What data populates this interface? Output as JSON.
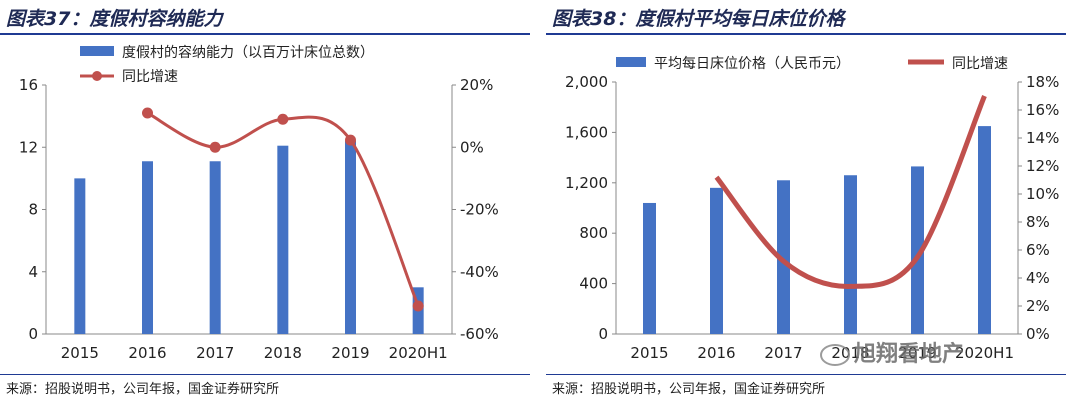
{
  "chart_data": [
    {
      "type": "bar",
      "title": "图表37：度假村容纳能力",
      "categories": [
        "2015",
        "2016",
        "2017",
        "2018",
        "2019",
        "2020H1"
      ],
      "series": [
        {
          "name": "度假村的容纳能力（以百万计床位总数）",
          "type": "bar",
          "axis": "left",
          "color": "#4472c4",
          "values": [
            10.0,
            11.1,
            11.1,
            12.1,
            12.4,
            3.0
          ]
        },
        {
          "name": "同比增速",
          "type": "line",
          "axis": "right",
          "color": "#c0504d",
          "values": [
            null,
            11.0,
            0.0,
            9.0,
            2.3,
            -51.0
          ]
        }
      ],
      "left_axis": {
        "range": [
          0,
          16
        ],
        "ticks": [
          "0",
          "4",
          "8",
          "12",
          "16"
        ]
      },
      "right_axis": {
        "range": [
          -60,
          20
        ],
        "ticks": [
          "-60%",
          "-40%",
          "-20%",
          "0%",
          "20%"
        ]
      },
      "legend_position": "top-left",
      "source": "来源：招股说明书，公司年报，国金证券研究所"
    },
    {
      "type": "bar",
      "title": "图表38：度假村平均每日床位价格",
      "categories": [
        "2015",
        "2016",
        "2017",
        "2018",
        "2019",
        "2020H1"
      ],
      "series": [
        {
          "name": "平均每日床位价格（人民币元）",
          "type": "bar",
          "axis": "left",
          "color": "#4472c4",
          "values": [
            1040,
            1160,
            1220,
            1260,
            1330,
            1650
          ]
        },
        {
          "name": "同比增速",
          "type": "line",
          "axis": "right",
          "color": "#c0504d",
          "values": [
            null,
            11.2,
            5.2,
            3.4,
            5.5,
            17.0
          ]
        }
      ],
      "left_axis": {
        "range": [
          0,
          2000
        ],
        "ticks": [
          "0",
          "400",
          "800",
          "1,200",
          "1,600",
          "2,000"
        ]
      },
      "right_axis": {
        "range": [
          0,
          18
        ],
        "ticks": [
          "0%",
          "2%",
          "4%",
          "6%",
          "8%",
          "10%",
          "12%",
          "14%",
          "16%",
          "18%"
        ]
      },
      "legend_position": "top",
      "source": "来源：招股说明书，公司年报，国金证券研究所"
    }
  ],
  "watermark": "旭翔看地产"
}
